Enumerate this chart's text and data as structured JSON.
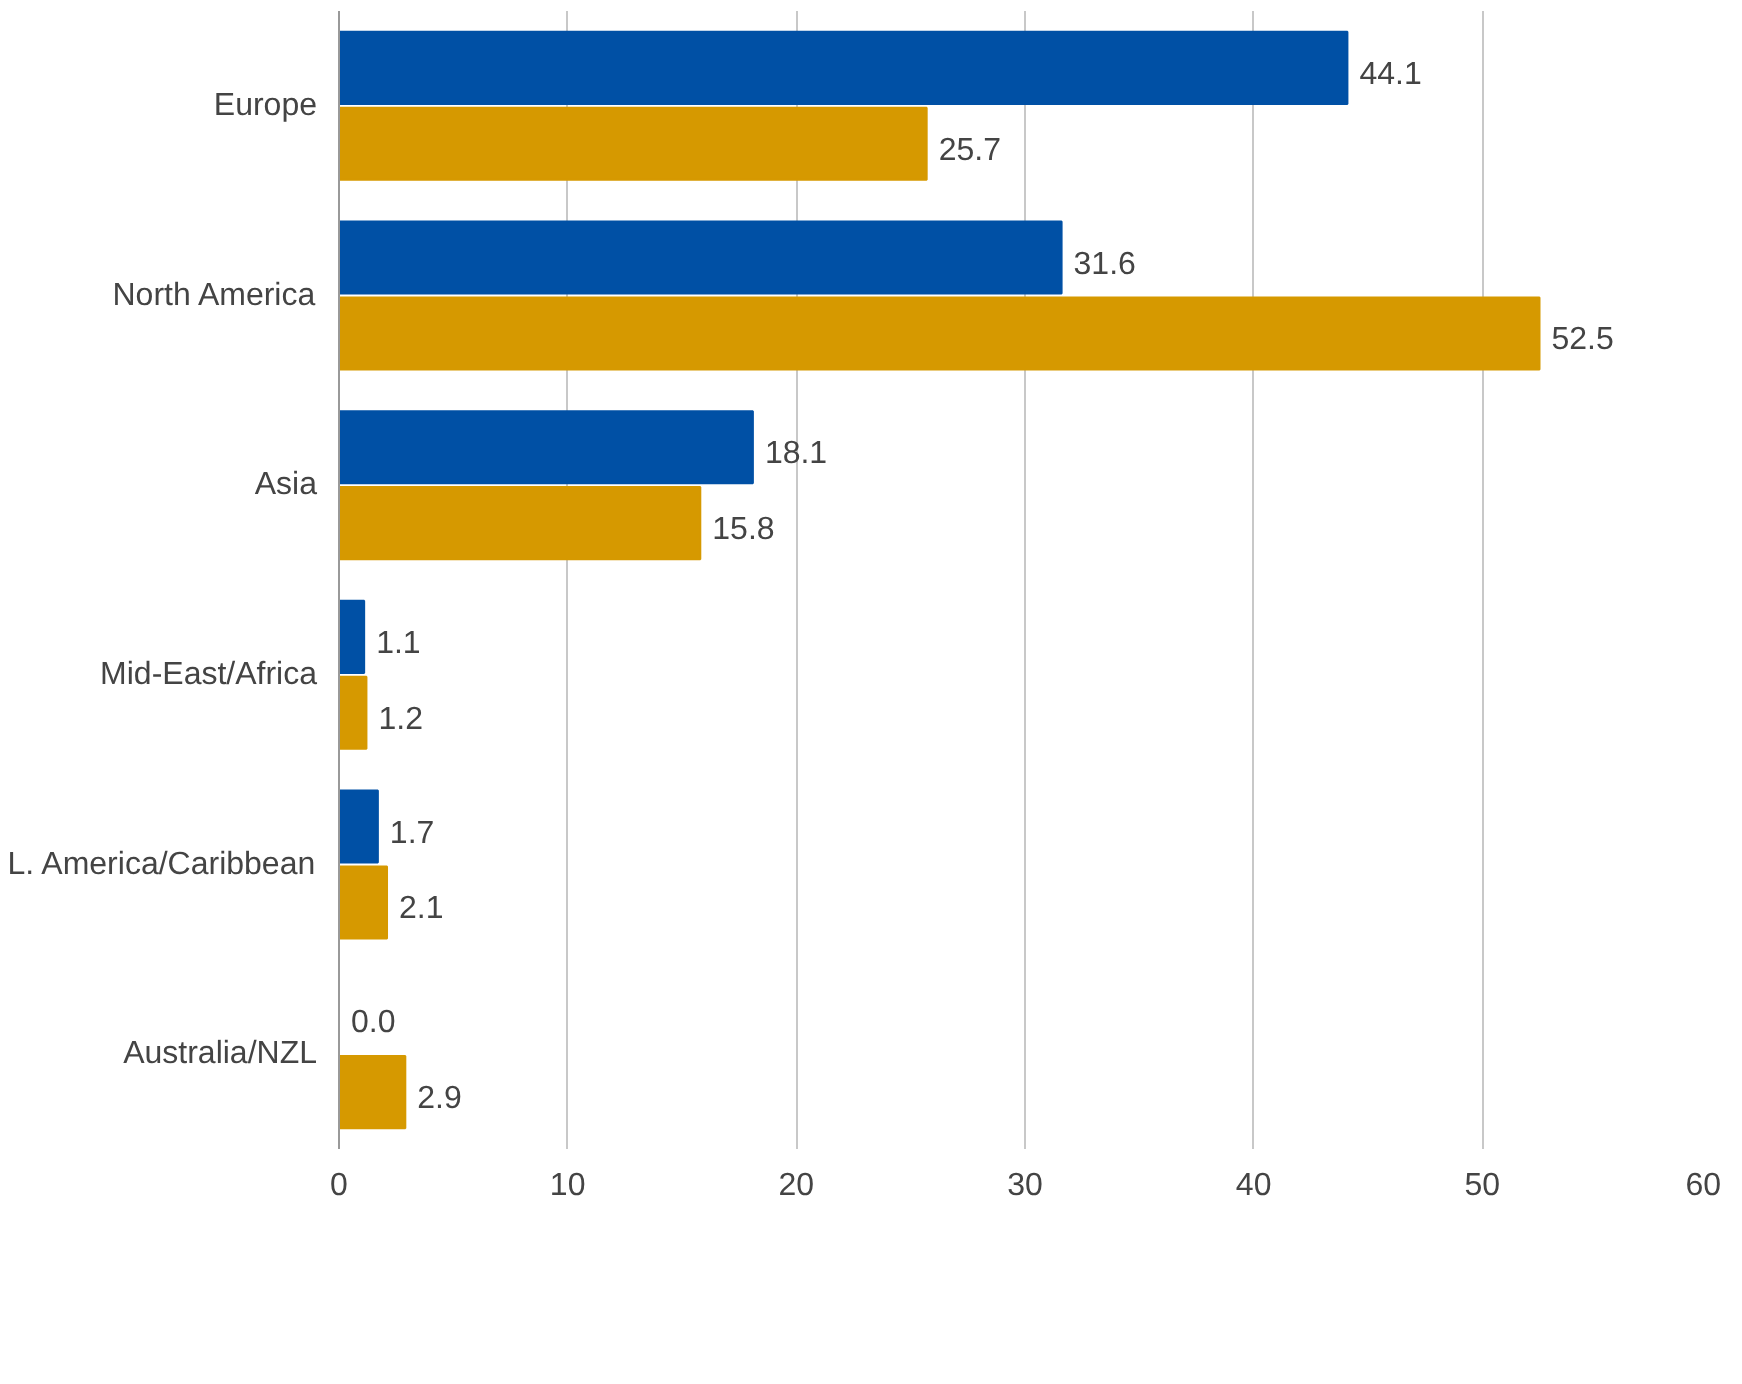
{
  "chart_data": {
    "type": "bar",
    "orientation": "horizontal",
    "categories": [
      "Europe",
      "North America",
      "Asia",
      "Mid-East/Africa",
      "L. America/Caribbean",
      "Australia/NZL"
    ],
    "series": [
      {
        "color": "#0050a5",
        "values": [
          44.1,
          31.6,
          18.1,
          1.1,
          1.7,
          0.0
        ],
        "value_labels": [
          "44.1",
          "31.6",
          "18.1",
          "1.1",
          "1.7",
          "0.0"
        ]
      },
      {
        "color": "#d69900",
        "values": [
          25.7,
          52.5,
          15.8,
          1.2,
          2.1,
          2.9
        ],
        "value_labels": [
          "25.7",
          "52.5",
          "15.8",
          "1.2",
          "2.1",
          "2.9"
        ]
      }
    ],
    "xlim": [
      0,
      60
    ],
    "xticks": [
      0,
      10,
      20,
      30,
      40,
      50,
      60
    ],
    "grid": "x"
  }
}
